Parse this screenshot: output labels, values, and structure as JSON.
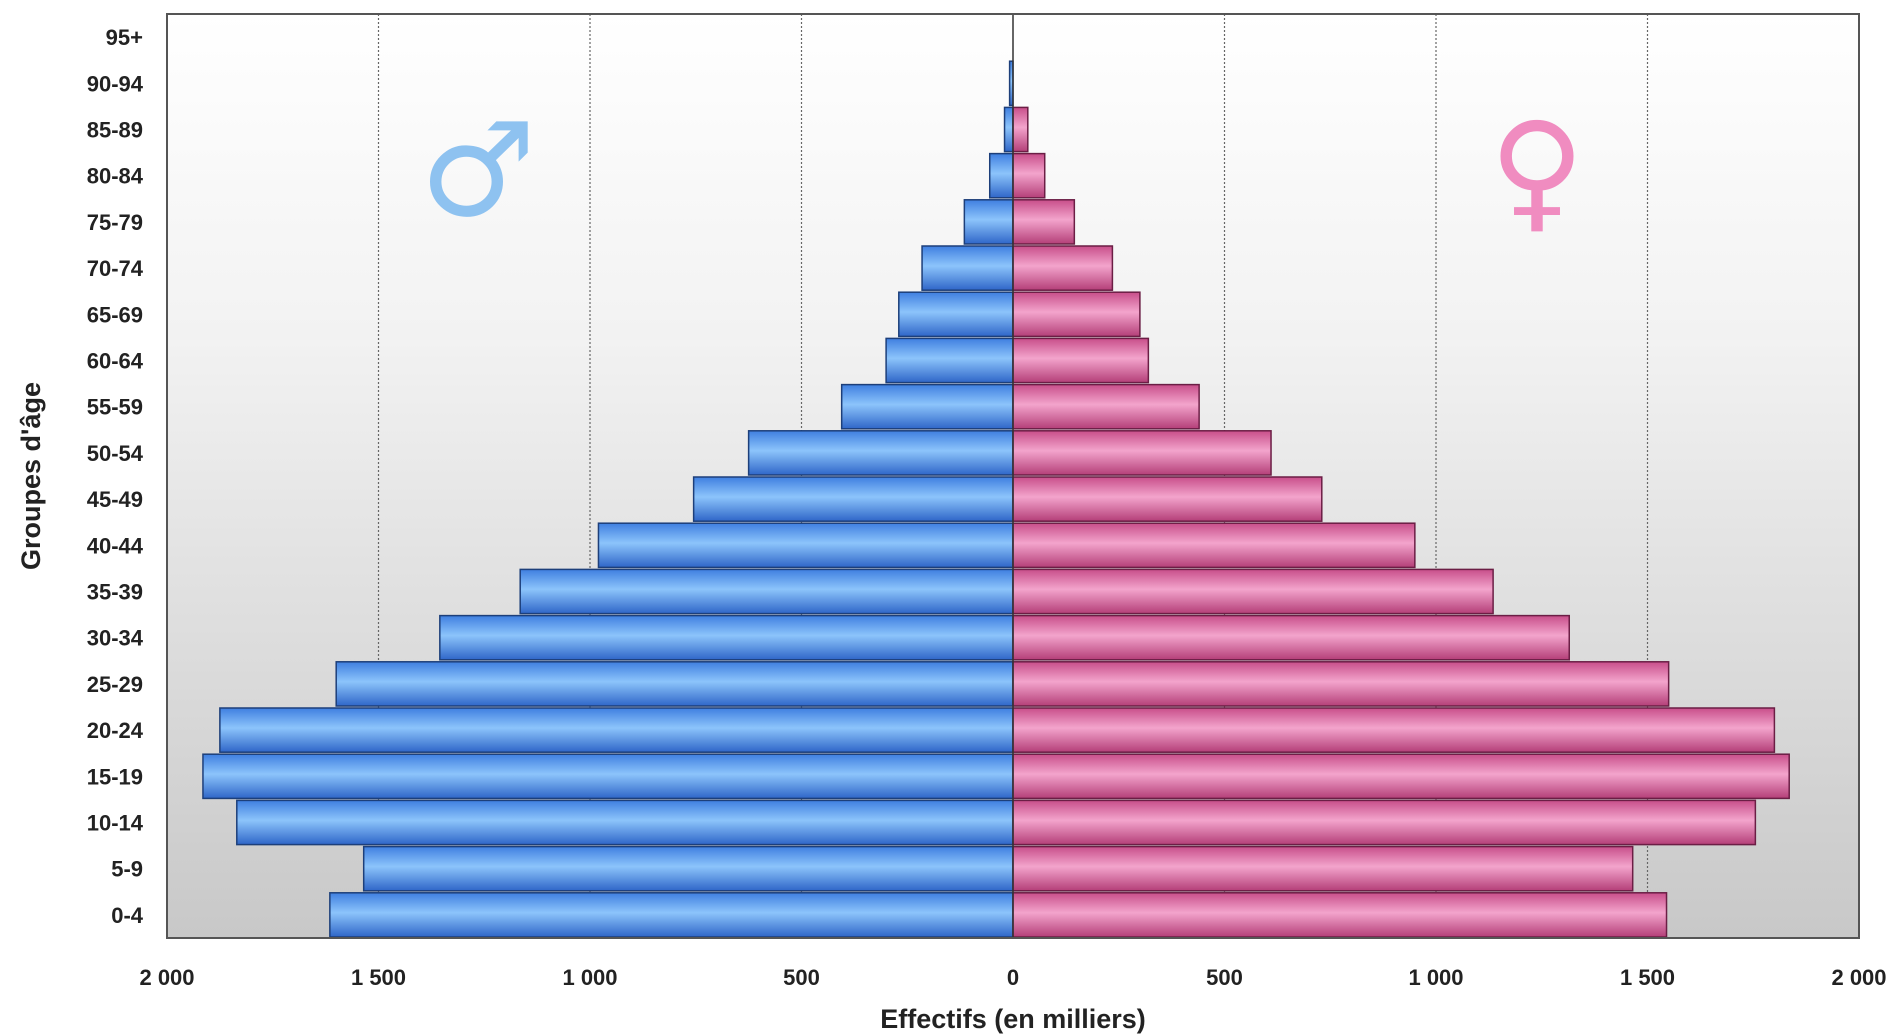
{
  "chart_data": {
    "type": "bar",
    "orientation": "horizontal",
    "subtype": "population-pyramid",
    "title": "",
    "xlabel": "Effectifs (en milliers)",
    "ylabel": "Groupes d'âge",
    "xlim": [
      -2000,
      2000
    ],
    "x_ticks": [
      -2000,
      -1500,
      -1000,
      -500,
      0,
      500,
      1000,
      1500,
      2000
    ],
    "x_tick_labels": [
      "2 000",
      "1 500",
      "1 000",
      "500",
      "0",
      "500",
      "1 000",
      "1 500",
      "2 000"
    ],
    "grid": "vertical",
    "categories": [
      "0-4",
      "5-9",
      "10-14",
      "15-19",
      "20-24",
      "25-29",
      "30-34",
      "35-39",
      "40-44",
      "45-49",
      "50-54",
      "55-59",
      "60-64",
      "65-69",
      "70-74",
      "75-79",
      "80-84",
      "85-89",
      "90-94",
      "95+"
    ],
    "series": [
      {
        "symbol": "♂",
        "side": "left",
        "color": "#5c9cec",
        "values": [
          1615,
          1535,
          1835,
          1915,
          1875,
          1600,
          1355,
          1165,
          980,
          755,
          625,
          405,
          300,
          270,
          215,
          115,
          55,
          20,
          8,
          0
        ]
      },
      {
        "symbol": "♀",
        "side": "right",
        "color": "#e36ea6",
        "values": [
          1545,
          1465,
          1755,
          1835,
          1800,
          1550,
          1315,
          1135,
          950,
          730,
          610,
          440,
          320,
          300,
          235,
          145,
          75,
          35,
          0,
          0
        ]
      }
    ],
    "symbol_colors": {
      "male": "#8ec2f0",
      "female": "#f08cc0"
    }
  }
}
